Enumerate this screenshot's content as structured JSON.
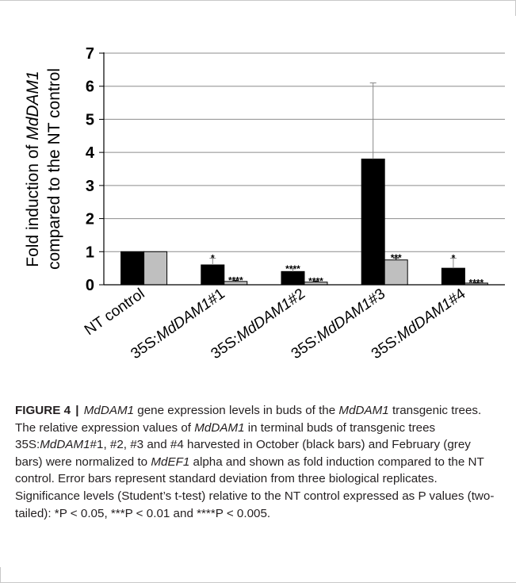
{
  "chart_data": {
    "type": "bar",
    "categories": [
      "NT control",
      "35S:MdDAM1#1",
      "35S:MdDAM1#2",
      "35S:MdDAM1#3",
      "35S:MdDAM1#4"
    ],
    "category_parts": [
      [
        {
          "t": "NT control",
          "i": false
        }
      ],
      [
        {
          "t": "35S:",
          "i": false
        },
        {
          "t": "MdDAM1",
          "i": true
        },
        {
          "t": "#1",
          "i": false
        }
      ],
      [
        {
          "t": "35S:",
          "i": false
        },
        {
          "t": "MdDAM1",
          "i": true
        },
        {
          "t": "#2",
          "i": false
        }
      ],
      [
        {
          "t": "35S:",
          "i": false
        },
        {
          "t": "MdDAM1",
          "i": true
        },
        {
          "t": "#3",
          "i": false
        }
      ],
      [
        {
          "t": "35S:",
          "i": false
        },
        {
          "t": "MdDAM1",
          "i": true
        },
        {
          "t": "#4",
          "i": false
        }
      ]
    ],
    "series": [
      {
        "color": "#000000",
        "values": [
          1.0,
          0.6,
          0.4,
          3.8,
          0.5
        ],
        "error": [
          0,
          0.2,
          0.08,
          2.3,
          0.3
        ],
        "significance": [
          "",
          "*",
          "****",
          "",
          "*"
        ]
      },
      {
        "color": "#bfbfbf",
        "values": [
          1.0,
          0.1,
          0.08,
          0.75,
          0.05
        ],
        "error": [
          0,
          0.03,
          0.03,
          0.06,
          0.01
        ],
        "significance": [
          "",
          "****",
          "****",
          "***",
          "****"
        ]
      }
    ],
    "ylabel_line1": [
      {
        "t": "Fold induction of ",
        "i": false
      },
      {
        "t": "MdDAM1",
        "i": true
      }
    ],
    "ylabel_line2": "compared to the NT control",
    "ylim": [
      0,
      7
    ],
    "yticks": [
      0,
      1,
      2,
      3,
      4,
      5,
      6,
      7
    ],
    "grid": true
  },
  "caption": {
    "label": "FIGURE 4",
    "separator": "|",
    "parts": [
      {
        "t": "MdDAM1",
        "i": true
      },
      {
        "t": " gene expression levels in buds of the ",
        "i": false
      },
      {
        "t": "MdDAM1",
        "i": true
      },
      {
        "t": " transgenic trees. The relative expression values of ",
        "i": false
      },
      {
        "t": "MdDAM1",
        "i": true
      },
      {
        "t": " in terminal buds of transgenic trees 35S:",
        "i": false
      },
      {
        "t": "MdDAM1",
        "i": true
      },
      {
        "t": "#1, #2, #3 and #4 harvested in October (black bars) and February (grey bars) were normalized to ",
        "i": false
      },
      {
        "t": "MdEF1",
        "i": true
      },
      {
        "t": " alpha and shown as fold induction compared to the NT control. Error bars represent standard deviation from three biological replicates. Significance levels (Student’s t-test) relative to the NT control expressed as P values (two-tailed): *P < 0.05, ***P < 0.01 and ****P < 0.005.",
        "i": false
      }
    ]
  }
}
